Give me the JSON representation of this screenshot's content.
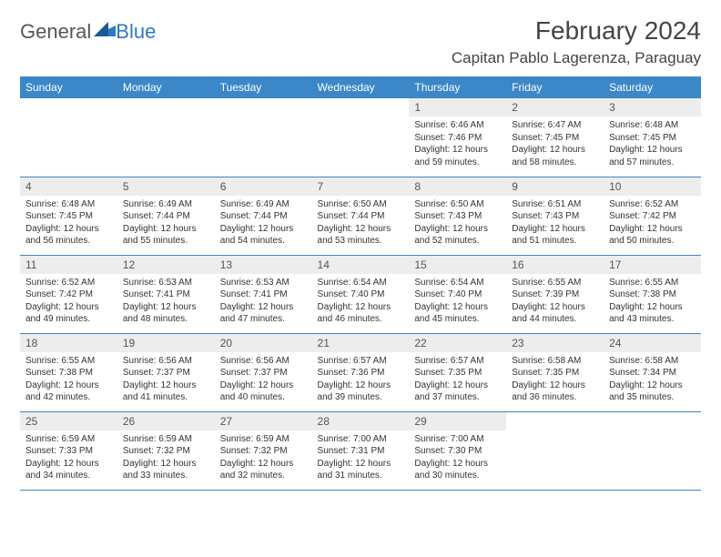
{
  "brand": {
    "part1": "General",
    "part2": "Blue"
  },
  "title": "February 2024",
  "location": "Capitan Pablo Lagerenza, Paraguay",
  "colors": {
    "header_bg": "#3b87c8",
    "header_fg": "#ffffff",
    "daynum_bg": "#ededed",
    "row_border": "#3b87c8",
    "brand_blue": "#2f79c2"
  },
  "weekdays": [
    "Sunday",
    "Monday",
    "Tuesday",
    "Wednesday",
    "Thursday",
    "Friday",
    "Saturday"
  ],
  "leading_blanks": 4,
  "days": [
    {
      "n": "1",
      "sunrise": "6:46 AM",
      "sunset": "7:46 PM",
      "daylight": "12 hours and 59 minutes."
    },
    {
      "n": "2",
      "sunrise": "6:47 AM",
      "sunset": "7:45 PM",
      "daylight": "12 hours and 58 minutes."
    },
    {
      "n": "3",
      "sunrise": "6:48 AM",
      "sunset": "7:45 PM",
      "daylight": "12 hours and 57 minutes."
    },
    {
      "n": "4",
      "sunrise": "6:48 AM",
      "sunset": "7:45 PM",
      "daylight": "12 hours and 56 minutes."
    },
    {
      "n": "5",
      "sunrise": "6:49 AM",
      "sunset": "7:44 PM",
      "daylight": "12 hours and 55 minutes."
    },
    {
      "n": "6",
      "sunrise": "6:49 AM",
      "sunset": "7:44 PM",
      "daylight": "12 hours and 54 minutes."
    },
    {
      "n": "7",
      "sunrise": "6:50 AM",
      "sunset": "7:44 PM",
      "daylight": "12 hours and 53 minutes."
    },
    {
      "n": "8",
      "sunrise": "6:50 AM",
      "sunset": "7:43 PM",
      "daylight": "12 hours and 52 minutes."
    },
    {
      "n": "9",
      "sunrise": "6:51 AM",
      "sunset": "7:43 PM",
      "daylight": "12 hours and 51 minutes."
    },
    {
      "n": "10",
      "sunrise": "6:52 AM",
      "sunset": "7:42 PM",
      "daylight": "12 hours and 50 minutes."
    },
    {
      "n": "11",
      "sunrise": "6:52 AM",
      "sunset": "7:42 PM",
      "daylight": "12 hours and 49 minutes."
    },
    {
      "n": "12",
      "sunrise": "6:53 AM",
      "sunset": "7:41 PM",
      "daylight": "12 hours and 48 minutes."
    },
    {
      "n": "13",
      "sunrise": "6:53 AM",
      "sunset": "7:41 PM",
      "daylight": "12 hours and 47 minutes."
    },
    {
      "n": "14",
      "sunrise": "6:54 AM",
      "sunset": "7:40 PM",
      "daylight": "12 hours and 46 minutes."
    },
    {
      "n": "15",
      "sunrise": "6:54 AM",
      "sunset": "7:40 PM",
      "daylight": "12 hours and 45 minutes."
    },
    {
      "n": "16",
      "sunrise": "6:55 AM",
      "sunset": "7:39 PM",
      "daylight": "12 hours and 44 minutes."
    },
    {
      "n": "17",
      "sunrise": "6:55 AM",
      "sunset": "7:38 PM",
      "daylight": "12 hours and 43 minutes."
    },
    {
      "n": "18",
      "sunrise": "6:55 AM",
      "sunset": "7:38 PM",
      "daylight": "12 hours and 42 minutes."
    },
    {
      "n": "19",
      "sunrise": "6:56 AM",
      "sunset": "7:37 PM",
      "daylight": "12 hours and 41 minutes."
    },
    {
      "n": "20",
      "sunrise": "6:56 AM",
      "sunset": "7:37 PM",
      "daylight": "12 hours and 40 minutes."
    },
    {
      "n": "21",
      "sunrise": "6:57 AM",
      "sunset": "7:36 PM",
      "daylight": "12 hours and 39 minutes."
    },
    {
      "n": "22",
      "sunrise": "6:57 AM",
      "sunset": "7:35 PM",
      "daylight": "12 hours and 37 minutes."
    },
    {
      "n": "23",
      "sunrise": "6:58 AM",
      "sunset": "7:35 PM",
      "daylight": "12 hours and 36 minutes."
    },
    {
      "n": "24",
      "sunrise": "6:58 AM",
      "sunset": "7:34 PM",
      "daylight": "12 hours and 35 minutes."
    },
    {
      "n": "25",
      "sunrise": "6:59 AM",
      "sunset": "7:33 PM",
      "daylight": "12 hours and 34 minutes."
    },
    {
      "n": "26",
      "sunrise": "6:59 AM",
      "sunset": "7:32 PM",
      "daylight": "12 hours and 33 minutes."
    },
    {
      "n": "27",
      "sunrise": "6:59 AM",
      "sunset": "7:32 PM",
      "daylight": "12 hours and 32 minutes."
    },
    {
      "n": "28",
      "sunrise": "7:00 AM",
      "sunset": "7:31 PM",
      "daylight": "12 hours and 31 minutes."
    },
    {
      "n": "29",
      "sunrise": "7:00 AM",
      "sunset": "7:30 PM",
      "daylight": "12 hours and 30 minutes."
    }
  ],
  "labels": {
    "sunrise": "Sunrise:",
    "sunset": "Sunset:",
    "daylight": "Daylight:"
  }
}
